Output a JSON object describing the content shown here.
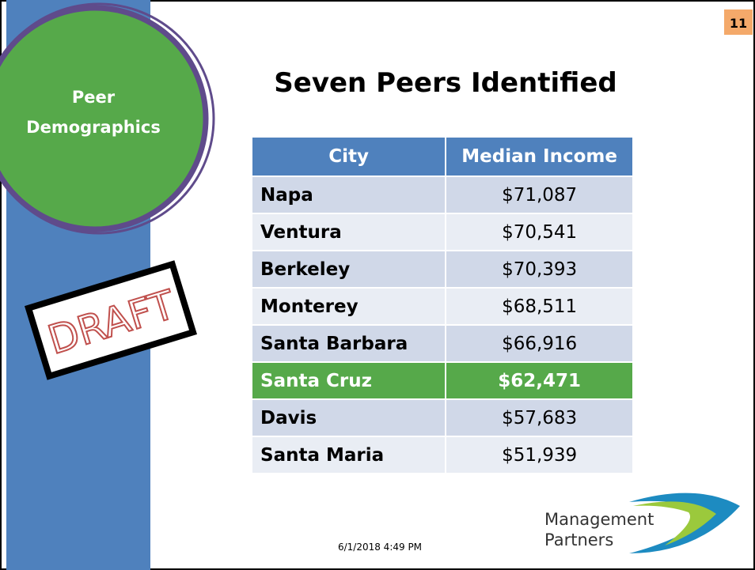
{
  "section": "Peer Demographics",
  "page_number": "11",
  "title": "Seven Peers Identified",
  "stamp": "DRAFT",
  "table": {
    "header": [
      "City",
      "Median Income"
    ],
    "rows": [
      [
        "Napa",
        "$71,087"
      ],
      [
        "Ventura",
        "$70,541"
      ],
      [
        "Berkeley",
        "$70,393"
      ],
      [
        "Monterey",
        "$68,511"
      ],
      [
        "Santa Barbara",
        "$66,916"
      ],
      [
        "Santa Cruz",
        "$62,471"
      ],
      [
        "Davis",
        "$57,683"
      ],
      [
        "Santa Maria",
        "$51,939"
      ]
    ],
    "highlight_row": 5
  },
  "footer": {
    "date": "6/1/2018 4:49 PM",
    "logo_line1": "Management",
    "logo_line2": "Partners"
  }
}
